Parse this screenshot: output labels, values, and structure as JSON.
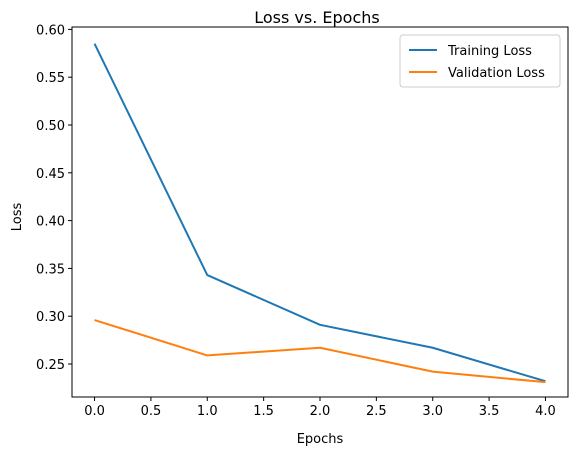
{
  "chart_data": {
    "type": "line",
    "title": "Loss vs. Epochs",
    "xlabel": "Epochs",
    "ylabel": "Loss",
    "x": [
      0,
      1,
      2,
      3,
      4
    ],
    "xlim": [
      -0.2,
      4.2
    ],
    "ylim": [
      0.2155,
      0.6025
    ],
    "xticks": [
      0.0,
      0.5,
      1.0,
      1.5,
      2.0,
      2.5,
      3.0,
      3.5,
      4.0
    ],
    "xtick_labels": [
      "0.0",
      "0.5",
      "1.0",
      "1.5",
      "2.0",
      "2.5",
      "3.0",
      "3.5",
      "4.0"
    ],
    "yticks": [
      0.25,
      0.3,
      0.35,
      0.4,
      0.45,
      0.5,
      0.55,
      0.6
    ],
    "ytick_labels": [
      "0.25",
      "0.30",
      "0.35",
      "0.40",
      "0.45",
      "0.50",
      "0.55",
      "0.60"
    ],
    "grid": false,
    "legend_position": "top-right",
    "series": [
      {
        "name": "Training Loss",
        "color": "#1f77b4",
        "values": [
          0.585,
          0.343,
          0.291,
          0.267,
          0.232
        ]
      },
      {
        "name": "Validation Loss",
        "color": "#ff7f0e",
        "values": [
          0.296,
          0.259,
          0.267,
          0.242,
          0.231
        ]
      }
    ]
  }
}
